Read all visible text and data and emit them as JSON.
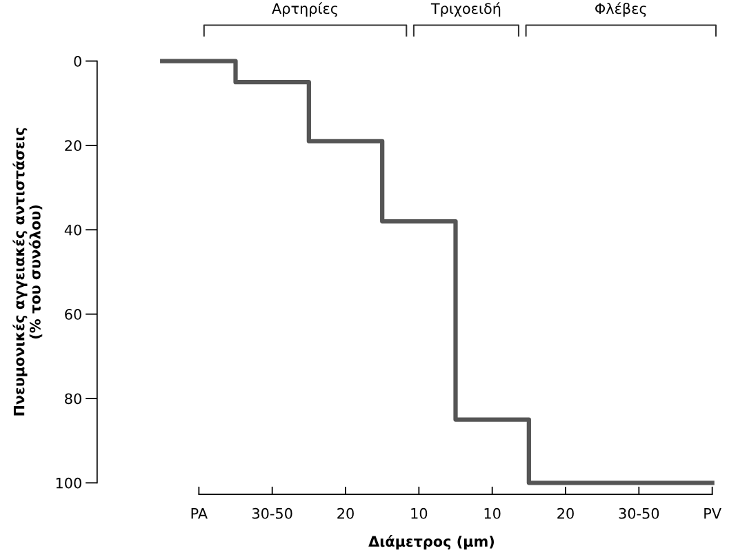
{
  "chart_data": {
    "type": "step",
    "xlabel": "Διάμετρος (μm)",
    "ylabel": "Πνευμονικές αγγειακές αντιστάσεις\n(% του συνόλου)",
    "categories": [
      null,
      "PA",
      null,
      "30-50",
      null,
      "20",
      null,
      "10",
      null,
      "10",
      null,
      "20",
      null,
      "30-50",
      null,
      "PV"
    ],
    "values": [
      0,
      0,
      5,
      5,
      19,
      19,
      38,
      38,
      85,
      85,
      100,
      100,
      100,
      100,
      100,
      100
    ],
    "color": "#555555",
    "ylim": [
      100,
      0
    ],
    "yticks": [
      0,
      20,
      40,
      60,
      80,
      100
    ],
    "annotations": [
      "Αρτηρίες",
      "Τριχοειδή",
      "Φλέβες"
    ],
    "grid": false,
    "legend": false,
    "marker": "none",
    "line_style": "solid"
  }
}
